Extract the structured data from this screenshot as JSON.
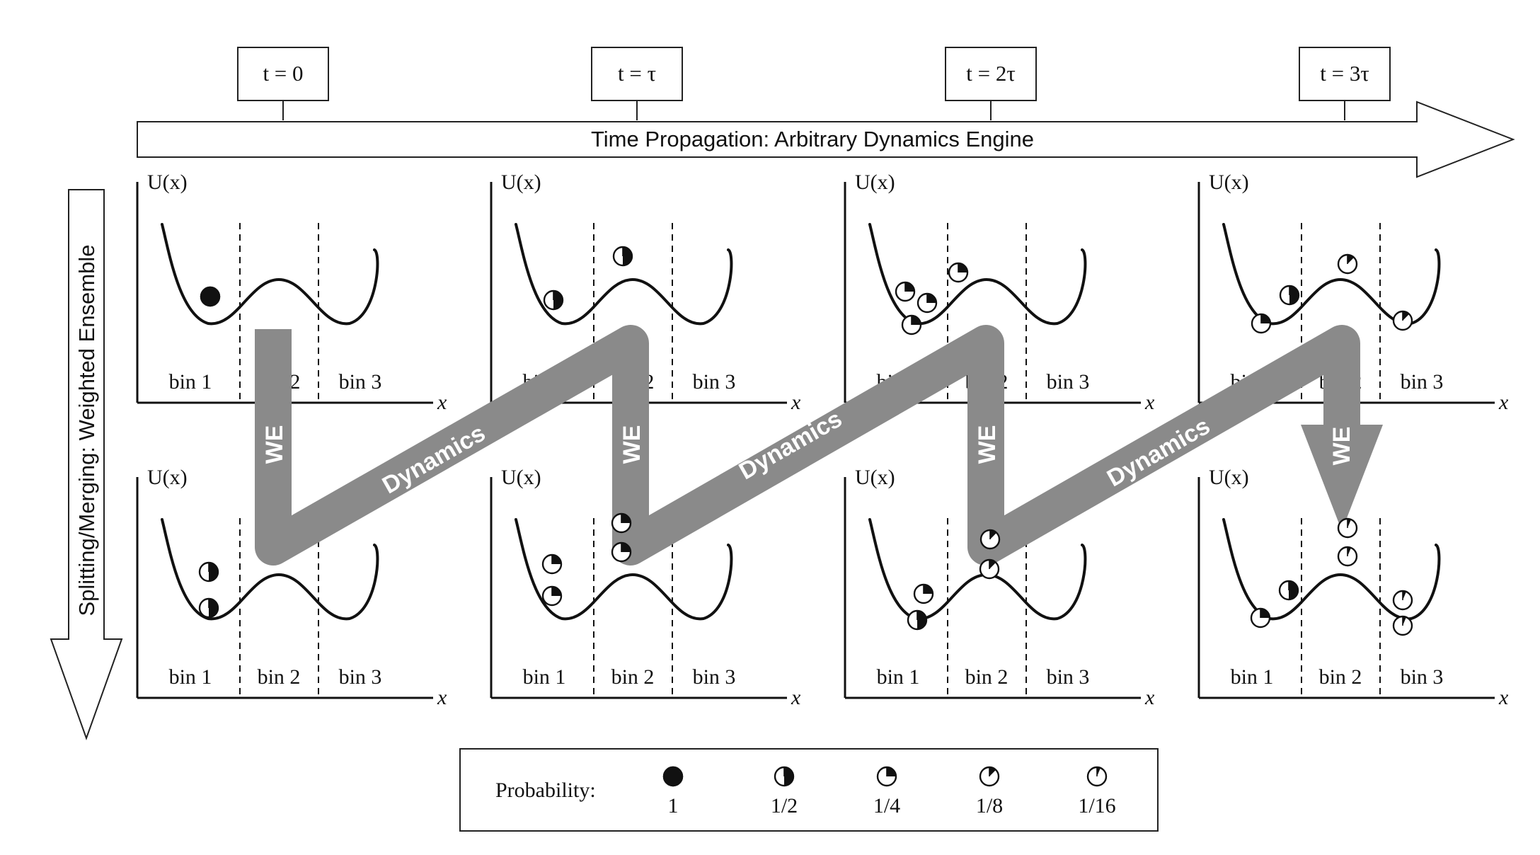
{
  "time_labels": [
    "t = 0",
    "t = τ",
    "t = 2τ",
    "t = 3τ"
  ],
  "time_arrow_label": "Time Propagation: Arbitrary Dynamics Engine",
  "vertical_arrow_label": "Splitting/Merging: Weighted Ensemble",
  "potential_label": "U(x)",
  "x_label": "x",
  "bins": [
    "bin 1",
    "bin 2",
    "bin 3"
  ],
  "flow_labels": {
    "we": "WE",
    "dynamics": "Dynamics"
  },
  "legend": {
    "title": "Probability:",
    "items": [
      {
        "label": "1",
        "fraction": 1
      },
      {
        "label": "1/2",
        "fraction": 0.5
      },
      {
        "label": "1/4",
        "fraction": 0.25
      },
      {
        "label": "1/8",
        "fraction": 0.125
      },
      {
        "label": "1/16",
        "fraction": 0.0625
      }
    ]
  },
  "panels": [
    {
      "row": "top",
      "time": "t = 0",
      "walkers": [
        {
          "bin": 1,
          "weight": 1
        }
      ]
    },
    {
      "row": "bottom",
      "time": "t = 0",
      "walkers": [
        {
          "bin": 1,
          "weight": 0.5
        },
        {
          "bin": 1,
          "weight": 0.5
        }
      ]
    },
    {
      "row": "top",
      "time": "t = τ",
      "walkers": [
        {
          "bin": 1,
          "weight": 0.5
        },
        {
          "bin": 2,
          "weight": 0.5
        }
      ]
    },
    {
      "row": "bottom",
      "time": "t = τ",
      "walkers": [
        {
          "bin": 1,
          "weight": 0.25
        },
        {
          "bin": 1,
          "weight": 0.25
        },
        {
          "bin": 2,
          "weight": 0.25
        },
        {
          "bin": 2,
          "weight": 0.25
        }
      ]
    },
    {
      "row": "top",
      "time": "t = 2τ",
      "walkers": [
        {
          "bin": 1,
          "weight": 0.25
        },
        {
          "bin": 1,
          "weight": 0.25
        },
        {
          "bin": 1,
          "weight": 0.25
        },
        {
          "bin": 2,
          "weight": 0.25
        }
      ]
    },
    {
      "row": "bottom",
      "time": "t = 2τ",
      "walkers": [
        {
          "bin": 1,
          "weight": 0.5
        },
        {
          "bin": 1,
          "weight": 0.25
        },
        {
          "bin": 2,
          "weight": 0.125
        },
        {
          "bin": 2,
          "weight": 0.125
        }
      ]
    },
    {
      "row": "top",
      "time": "t = 3τ",
      "walkers": [
        {
          "bin": 1,
          "weight": 0.5
        },
        {
          "bin": 1,
          "weight": 0.25
        },
        {
          "bin": 2,
          "weight": 0.125
        },
        {
          "bin": 3,
          "weight": 0.125
        }
      ]
    },
    {
      "row": "bottom",
      "time": "t = 3τ",
      "walkers": [
        {
          "bin": 1,
          "weight": 0.5
        },
        {
          "bin": 1,
          "weight": 0.25
        },
        {
          "bin": 2,
          "weight": 0.0625
        },
        {
          "bin": 2,
          "weight": 0.0625
        },
        {
          "bin": 3,
          "weight": 0.0625
        },
        {
          "bin": 3,
          "weight": 0.0625
        }
      ]
    }
  ]
}
